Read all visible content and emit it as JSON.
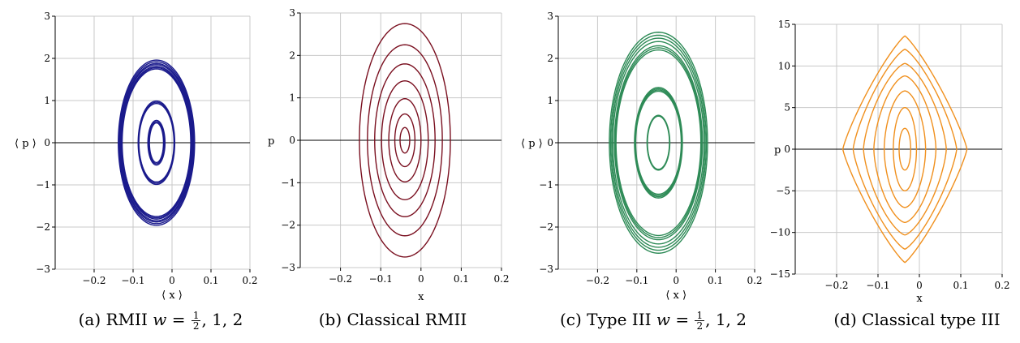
{
  "chart_data": [
    {
      "type": "line",
      "subplot": "(a)",
      "caption": {
        "prefix": "(a) RMII ",
        "var": "w",
        "eq": " = ",
        "frac_num": "1",
        "frac_den": "2",
        "rest": ", 1, 2"
      },
      "xlabel": "⟨ x ⟩",
      "ylabel": "⟨ p ⟩",
      "xlim": [
        -0.3,
        0.2
      ],
      "ylim": [
        -3,
        3
      ],
      "xticks": [
        -0.2,
        -0.1,
        0,
        0.1,
        0.2
      ],
      "xtick_labels": [
        "−0.2",
        "−0.1",
        "0",
        "0.1",
        "0.2"
      ],
      "yticks": [
        -3,
        -2,
        -1,
        0,
        1,
        2,
        3
      ],
      "ytick_labels": [
        "−3",
        "−2",
        "−1",
        "0",
        "1",
        "2",
        "3"
      ],
      "grid": true,
      "color": "#1a1a8c",
      "shape": "ellipse",
      "center": [
        -0.04,
        0
      ],
      "series": [
        {
          "rx": 0.018,
          "ry": 0.47
        },
        {
          "rx": 0.02,
          "ry": 0.5
        },
        {
          "rx": 0.022,
          "ry": 0.53
        },
        {
          "rx": 0.045,
          "ry": 0.93
        },
        {
          "rx": 0.046,
          "ry": 0.96
        },
        {
          "rx": 0.047,
          "ry": 0.99
        },
        {
          "rx": 0.088,
          "ry": 1.75
        },
        {
          "rx": 0.089,
          "ry": 1.78
        },
        {
          "rx": 0.09,
          "ry": 1.81
        },
        {
          "rx": 0.092,
          "ry": 1.85
        },
        {
          "rx": 0.094,
          "ry": 1.88
        },
        {
          "rx": 0.096,
          "ry": 1.92
        },
        {
          "rx": 0.098,
          "ry": 1.96
        }
      ]
    },
    {
      "type": "line",
      "subplot": "(b)",
      "caption": {
        "prefix": "(b) Classical RMII"
      },
      "xlabel": "x",
      "ylabel": "p",
      "xlim": [
        -0.3,
        0.2
      ],
      "ylim": [
        -3,
        3
      ],
      "xticks": [
        -0.2,
        -0.1,
        0,
        0.1,
        0.2
      ],
      "xtick_labels": [
        "−0.2",
        "−0.1",
        "0",
        "0.1",
        "0.2"
      ],
      "yticks": [
        -3,
        -2,
        -1,
        0,
        1,
        2,
        3
      ],
      "ytick_labels": [
        "−3",
        "−2",
        "−1",
        "0",
        "1",
        "2",
        "3"
      ],
      "grid": true,
      "color": "#7a1020",
      "shape": "ellipse",
      "center": [
        -0.04,
        0
      ],
      "series": [
        {
          "rx": 0.012,
          "ry": 0.3
        },
        {
          "rx": 0.025,
          "ry": 0.62
        },
        {
          "rx": 0.04,
          "ry": 0.98
        },
        {
          "rx": 0.058,
          "ry": 1.4
        },
        {
          "rx": 0.075,
          "ry": 1.8
        },
        {
          "rx": 0.093,
          "ry": 2.25
        },
        {
          "rx": 0.113,
          "ry": 2.75
        }
      ]
    },
    {
      "type": "line",
      "subplot": "(c)",
      "caption": {
        "prefix": "(c) Type III ",
        "var": "w",
        "eq": " = ",
        "frac_num": "1",
        "frac_den": "2",
        "rest": ", 1, 2"
      },
      "xlabel": "⟨ x ⟩",
      "ylabel": "⟨ p ⟩",
      "xlim": [
        -0.3,
        0.2
      ],
      "ylim": [
        -3,
        3
      ],
      "xticks": [
        -0.2,
        -0.1,
        0,
        0.1,
        0.2
      ],
      "xtick_labels": [
        "−0.2",
        "−0.1",
        "0",
        "0.1",
        "0.2"
      ],
      "yticks": [
        -3,
        -2,
        -1,
        0,
        1,
        2,
        3
      ],
      "ytick_labels": [
        "−3",
        "−2",
        "−1",
        "0",
        "1",
        "2",
        "3"
      ],
      "grid": true,
      "color": "#2e8b57",
      "shape": "ellipse",
      "center": [
        -0.045,
        0
      ],
      "series": [
        {
          "rx": 0.028,
          "ry": 0.63
        },
        {
          "rx": 0.029,
          "ry": 0.65
        },
        {
          "rx": 0.058,
          "ry": 1.22
        },
        {
          "rx": 0.059,
          "ry": 1.25
        },
        {
          "rx": 0.06,
          "ry": 1.28
        },
        {
          "rx": 0.061,
          "ry": 1.31
        },
        {
          "rx": 0.108,
          "ry": 2.2
        },
        {
          "rx": 0.11,
          "ry": 2.25
        },
        {
          "rx": 0.112,
          "ry": 2.3
        },
        {
          "rx": 0.116,
          "ry": 2.4
        },
        {
          "rx": 0.119,
          "ry": 2.48
        },
        {
          "rx": 0.122,
          "ry": 2.55
        },
        {
          "rx": 0.125,
          "ry": 2.62
        }
      ]
    },
    {
      "type": "line",
      "subplot": "(d)",
      "caption": {
        "prefix": "(d) Classical type III"
      },
      "xlabel": "x",
      "ylabel": "p",
      "xlim": [
        -0.3,
        0.2
      ],
      "ylim": [
        -15,
        15
      ],
      "xticks": [
        -0.2,
        -0.1,
        0,
        0.1,
        0.2
      ],
      "xtick_labels": [
        "−0.2",
        "−0.1",
        "0",
        "0.1",
        "0.2"
      ],
      "yticks": [
        -15,
        -10,
        -5,
        0,
        5,
        10,
        15
      ],
      "ytick_labels": [
        "−15",
        "−10",
        "−5",
        "0",
        "5",
        "10",
        "15"
      ],
      "grid": true,
      "color": "#f0901e",
      "shape": "superellipse",
      "center": [
        -0.035,
        0
      ],
      "series": [
        {
          "rx": 0.014,
          "ry": 2.5,
          "n": 2.0
        },
        {
          "rx": 0.028,
          "ry": 5.0,
          "n": 1.9
        },
        {
          "rx": 0.05,
          "ry": 7.0,
          "n": 1.75
        },
        {
          "rx": 0.075,
          "ry": 8.8,
          "n": 1.6
        },
        {
          "rx": 0.1,
          "ry": 10.3,
          "n": 1.45
        },
        {
          "rx": 0.125,
          "ry": 12.0,
          "n": 1.3
        },
        {
          "rx": 0.15,
          "ry": 13.6,
          "n": 1.18
        }
      ]
    }
  ]
}
